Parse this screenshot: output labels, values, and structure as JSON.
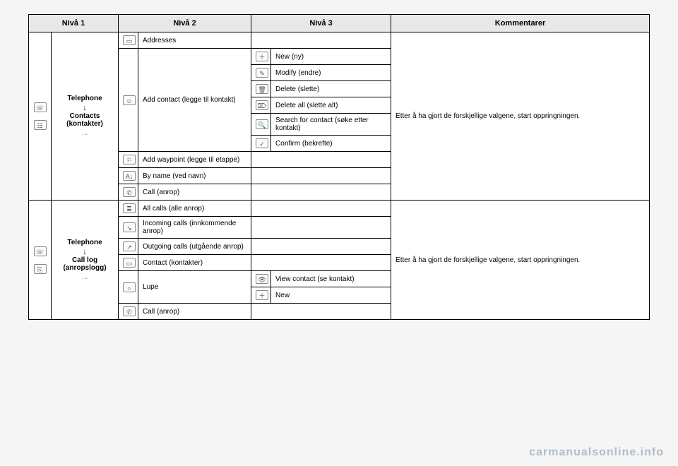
{
  "headers": {
    "n1": "Nivå 1",
    "n2": "Nivå 2",
    "n3": "Nivå 3",
    "comm": "Kommentarer"
  },
  "section1": {
    "path_top": "Telephone",
    "path_mid": "Contacts (kontakter)",
    "lvl2": {
      "addresses": "Addresses",
      "addcontact": "Add contact (legge til kontakt)",
      "addwaypoint": "Add waypoint (legge til etappe)",
      "byname": "By name (ved navn)",
      "call": "Call (anrop)"
    },
    "lvl3": {
      "new": "New (ny)",
      "modify": "Modify (endre)",
      "delete": "Delete (slette)",
      "deleteall": "Delete all (slette alt)",
      "search": "Search for contact (søke etter kontakt)",
      "confirm": "Confirm (bekrefte)"
    },
    "comment": "Etter å ha gjort de forskjellige valgene, start oppringningen."
  },
  "section2": {
    "path_top": "Telephone",
    "path_mid": "Call log (anropslogg)",
    "lvl2": {
      "allcalls": "All calls (alle anrop)",
      "incoming": "Incoming calls (innkommende anrop)",
      "outgoing": "Outgoing calls (utgående anrop)",
      "contact": "Contact (kontakter)",
      "lupe": "Lupe",
      "call": "Call (anrop)"
    },
    "lvl3": {
      "viewcontact": "View contact (se kontakt)",
      "new": "New"
    },
    "comment": "Etter å ha gjort de forskjellige valgene, start oppringningen."
  },
  "watermark": "carmanualsonline.info",
  "icons": {
    "phone": "☏",
    "contacts": "☷",
    "log": "⎘",
    "pencil": "✎",
    "person": "☺",
    "trash": "🗑",
    "trashall": "⌦",
    "search": "🔍",
    "check": "✓",
    "flag": "⚐",
    "az": "A↓",
    "handset": "✆",
    "list": "≣",
    "in": "↘",
    "out": "↗",
    "card": "▭",
    "mag": "⌕",
    "eye": "👁",
    "plus": "＋"
  }
}
